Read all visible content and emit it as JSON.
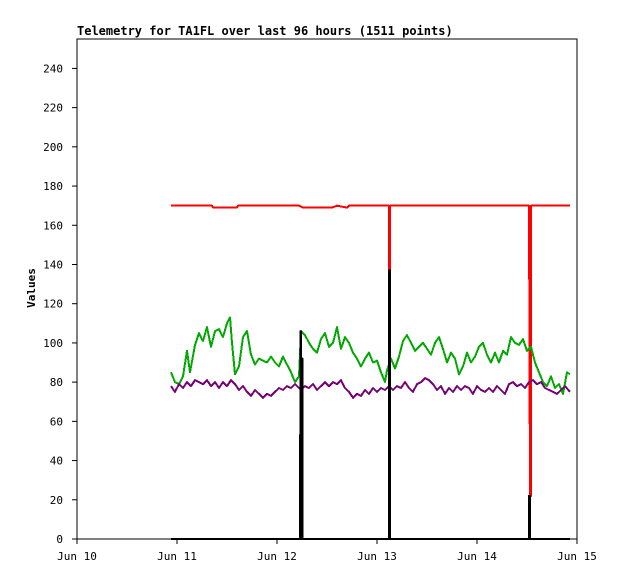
{
  "chart_data": {
    "type": "line",
    "title": "Telemetry for TA1FL over last 96 hours (1511 points)",
    "ylabel": "Values",
    "xlabel": "",
    "xlim": [
      0,
      5
    ],
    "ylim": [
      0,
      255
    ],
    "x_ticks": [
      {
        "pos": 0,
        "label": "Jun 10"
      },
      {
        "pos": 1,
        "label": "Jun 11"
      },
      {
        "pos": 2,
        "label": "Jun 12"
      },
      {
        "pos": 3,
        "label": "Jun 13"
      },
      {
        "pos": 4,
        "label": "Jun 14"
      },
      {
        "pos": 5,
        "label": "Jun 15"
      }
    ],
    "y_ticks": [
      0,
      20,
      40,
      60,
      80,
      100,
      120,
      140,
      160,
      180,
      200,
      220,
      240
    ],
    "grid": false,
    "legend": "none",
    "series": [
      {
        "color": "#ff0000",
        "points": [
          [
            0.94,
            170
          ],
          [
            1.35,
            170
          ],
          [
            1.36,
            169
          ],
          [
            1.6,
            169
          ],
          [
            1.61,
            170
          ],
          [
            2.22,
            170
          ],
          [
            2.26,
            169
          ],
          [
            2.55,
            169
          ],
          [
            2.6,
            170
          ],
          [
            2.7,
            169
          ],
          [
            2.72,
            170
          ],
          [
            3.12,
            170
          ],
          [
            3.12,
            137
          ],
          [
            3.13,
            137
          ],
          [
            3.13,
            170
          ],
          [
            4.52,
            170
          ],
          [
            4.53,
            22
          ],
          [
            4.54,
            22
          ],
          [
            4.54,
            170
          ],
          [
            4.93,
            170
          ]
        ]
      },
      {
        "color": "#00aa00",
        "points": [
          [
            0.94,
            85
          ],
          [
            0.98,
            80
          ],
          [
            1.02,
            79
          ],
          [
            1.06,
            83
          ],
          [
            1.1,
            96
          ],
          [
            1.13,
            85
          ],
          [
            1.18,
            99
          ],
          [
            1.22,
            105
          ],
          [
            1.26,
            101
          ],
          [
            1.3,
            108
          ],
          [
            1.34,
            98
          ],
          [
            1.38,
            106
          ],
          [
            1.42,
            107
          ],
          [
            1.46,
            103
          ],
          [
            1.5,
            110
          ],
          [
            1.53,
            113
          ],
          [
            1.55,
            100
          ],
          [
            1.58,
            84
          ],
          [
            1.62,
            88
          ],
          [
            1.66,
            103
          ],
          [
            1.7,
            106
          ],
          [
            1.74,
            94
          ],
          [
            1.78,
            89
          ],
          [
            1.82,
            92
          ],
          [
            1.86,
            91
          ],
          [
            1.9,
            90
          ],
          [
            1.94,
            93
          ],
          [
            1.98,
            90
          ],
          [
            2.02,
            88
          ],
          [
            2.06,
            93
          ],
          [
            2.1,
            89
          ],
          [
            2.14,
            85
          ],
          [
            2.18,
            80
          ],
          [
            2.22,
            83
          ],
          [
            2.24,
            106
          ],
          [
            2.28,
            104
          ],
          [
            2.32,
            100
          ],
          [
            2.36,
            97
          ],
          [
            2.4,
            95
          ],
          [
            2.44,
            102
          ],
          [
            2.48,
            105
          ],
          [
            2.52,
            98
          ],
          [
            2.56,
            100
          ],
          [
            2.6,
            108
          ],
          [
            2.64,
            97
          ],
          [
            2.68,
            103
          ],
          [
            2.72,
            100
          ],
          [
            2.76,
            95
          ],
          [
            2.8,
            92
          ],
          [
            2.84,
            88
          ],
          [
            2.88,
            92
          ],
          [
            2.92,
            95
          ],
          [
            2.96,
            90
          ],
          [
            3.0,
            91
          ],
          [
            3.04,
            85
          ],
          [
            3.08,
            80
          ],
          [
            3.1,
            86
          ],
          [
            3.14,
            92
          ],
          [
            3.18,
            87
          ],
          [
            3.22,
            93
          ],
          [
            3.26,
            101
          ],
          [
            3.3,
            104
          ],
          [
            3.34,
            100
          ],
          [
            3.38,
            96
          ],
          [
            3.42,
            98
          ],
          [
            3.46,
            100
          ],
          [
            3.5,
            97
          ],
          [
            3.54,
            94
          ],
          [
            3.58,
            100
          ],
          [
            3.62,
            103
          ],
          [
            3.66,
            97
          ],
          [
            3.7,
            90
          ],
          [
            3.74,
            95
          ],
          [
            3.78,
            92
          ],
          [
            3.82,
            84
          ],
          [
            3.86,
            88
          ],
          [
            3.9,
            95
          ],
          [
            3.94,
            90
          ],
          [
            3.98,
            93
          ],
          [
            4.02,
            98
          ],
          [
            4.06,
            100
          ],
          [
            4.1,
            94
          ],
          [
            4.14,
            90
          ],
          [
            4.18,
            95
          ],
          [
            4.22,
            90
          ],
          [
            4.26,
            96
          ],
          [
            4.3,
            94
          ],
          [
            4.34,
            103
          ],
          [
            4.38,
            100
          ],
          [
            4.42,
            99
          ],
          [
            4.46,
            102
          ],
          [
            4.5,
            96
          ],
          [
            4.54,
            98
          ],
          [
            4.58,
            90
          ],
          [
            4.62,
            85
          ],
          [
            4.66,
            80
          ],
          [
            4.7,
            78
          ],
          [
            4.74,
            83
          ],
          [
            4.78,
            77
          ],
          [
            4.82,
            79
          ],
          [
            4.86,
            74
          ],
          [
            4.9,
            85
          ],
          [
            4.93,
            84
          ]
        ]
      },
      {
        "color": "#770077",
        "points": [
          [
            0.94,
            78
          ],
          [
            0.98,
            75
          ],
          [
            1.02,
            79
          ],
          [
            1.06,
            77
          ],
          [
            1.1,
            80
          ],
          [
            1.14,
            78
          ],
          [
            1.18,
            81
          ],
          [
            1.22,
            80
          ],
          [
            1.26,
            79
          ],
          [
            1.3,
            81
          ],
          [
            1.34,
            78
          ],
          [
            1.38,
            80
          ],
          [
            1.42,
            77
          ],
          [
            1.46,
            80
          ],
          [
            1.5,
            78
          ],
          [
            1.54,
            81
          ],
          [
            1.58,
            79
          ],
          [
            1.62,
            76
          ],
          [
            1.66,
            78
          ],
          [
            1.7,
            75
          ],
          [
            1.74,
            73
          ],
          [
            1.78,
            76
          ],
          [
            1.82,
            74
          ],
          [
            1.86,
            72
          ],
          [
            1.9,
            74
          ],
          [
            1.94,
            73
          ],
          [
            1.98,
            75
          ],
          [
            2.02,
            77
          ],
          [
            2.06,
            76
          ],
          [
            2.1,
            78
          ],
          [
            2.14,
            77
          ],
          [
            2.18,
            79
          ],
          [
            2.22,
            77
          ],
          [
            2.24,
            76
          ],
          [
            2.28,
            78
          ],
          [
            2.32,
            77
          ],
          [
            2.36,
            79
          ],
          [
            2.4,
            76
          ],
          [
            2.44,
            78
          ],
          [
            2.48,
            80
          ],
          [
            2.52,
            78
          ],
          [
            2.56,
            80
          ],
          [
            2.6,
            79
          ],
          [
            2.64,
            81
          ],
          [
            2.68,
            77
          ],
          [
            2.72,
            75
          ],
          [
            2.76,
            72
          ],
          [
            2.8,
            74
          ],
          [
            2.84,
            73
          ],
          [
            2.88,
            76
          ],
          [
            2.92,
            74
          ],
          [
            2.96,
            77
          ],
          [
            3.0,
            75
          ],
          [
            3.04,
            77
          ],
          [
            3.08,
            76
          ],
          [
            3.12,
            78
          ],
          [
            3.16,
            76
          ],
          [
            3.2,
            78
          ],
          [
            3.24,
            77
          ],
          [
            3.28,
            80
          ],
          [
            3.32,
            77
          ],
          [
            3.36,
            75
          ],
          [
            3.4,
            79
          ],
          [
            3.44,
            80
          ],
          [
            3.48,
            82
          ],
          [
            3.52,
            81
          ],
          [
            3.56,
            79
          ],
          [
            3.6,
            76
          ],
          [
            3.64,
            78
          ],
          [
            3.68,
            74
          ],
          [
            3.72,
            77
          ],
          [
            3.76,
            75
          ],
          [
            3.8,
            78
          ],
          [
            3.84,
            76
          ],
          [
            3.88,
            78
          ],
          [
            3.92,
            77
          ],
          [
            3.96,
            74
          ],
          [
            4.0,
            78
          ],
          [
            4.04,
            76
          ],
          [
            4.08,
            75
          ],
          [
            4.12,
            77
          ],
          [
            4.16,
            75
          ],
          [
            4.2,
            78
          ],
          [
            4.24,
            76
          ],
          [
            4.28,
            74
          ],
          [
            4.32,
            79
          ],
          [
            4.36,
            80
          ],
          [
            4.4,
            78
          ],
          [
            4.44,
            79
          ],
          [
            4.48,
            77
          ],
          [
            4.52,
            80
          ],
          [
            4.56,
            81
          ],
          [
            4.6,
            79
          ],
          [
            4.64,
            80
          ],
          [
            4.68,
            77
          ],
          [
            4.72,
            76
          ],
          [
            4.76,
            75
          ],
          [
            4.8,
            74
          ],
          [
            4.84,
            76
          ],
          [
            4.88,
            78
          ],
          [
            4.93,
            75
          ]
        ]
      },
      {
        "color": "#000000",
        "points": [
          [
            0.94,
            0
          ],
          [
            2.23,
            0
          ],
          [
            2.23,
            53
          ],
          [
            2.235,
            53
          ],
          [
            2.235,
            106
          ],
          [
            2.24,
            106
          ],
          [
            2.24,
            0
          ],
          [
            2.25,
            0
          ],
          [
            2.25,
            92
          ],
          [
            2.255,
            92
          ],
          [
            2.255,
            0
          ],
          [
            3.12,
            0
          ],
          [
            3.12,
            137
          ],
          [
            3.13,
            137
          ],
          [
            3.13,
            0
          ],
          [
            4.52,
            0
          ],
          [
            4.52,
            22
          ],
          [
            4.53,
            22
          ],
          [
            4.53,
            0
          ],
          [
            4.93,
            0
          ]
        ]
      }
    ]
  }
}
